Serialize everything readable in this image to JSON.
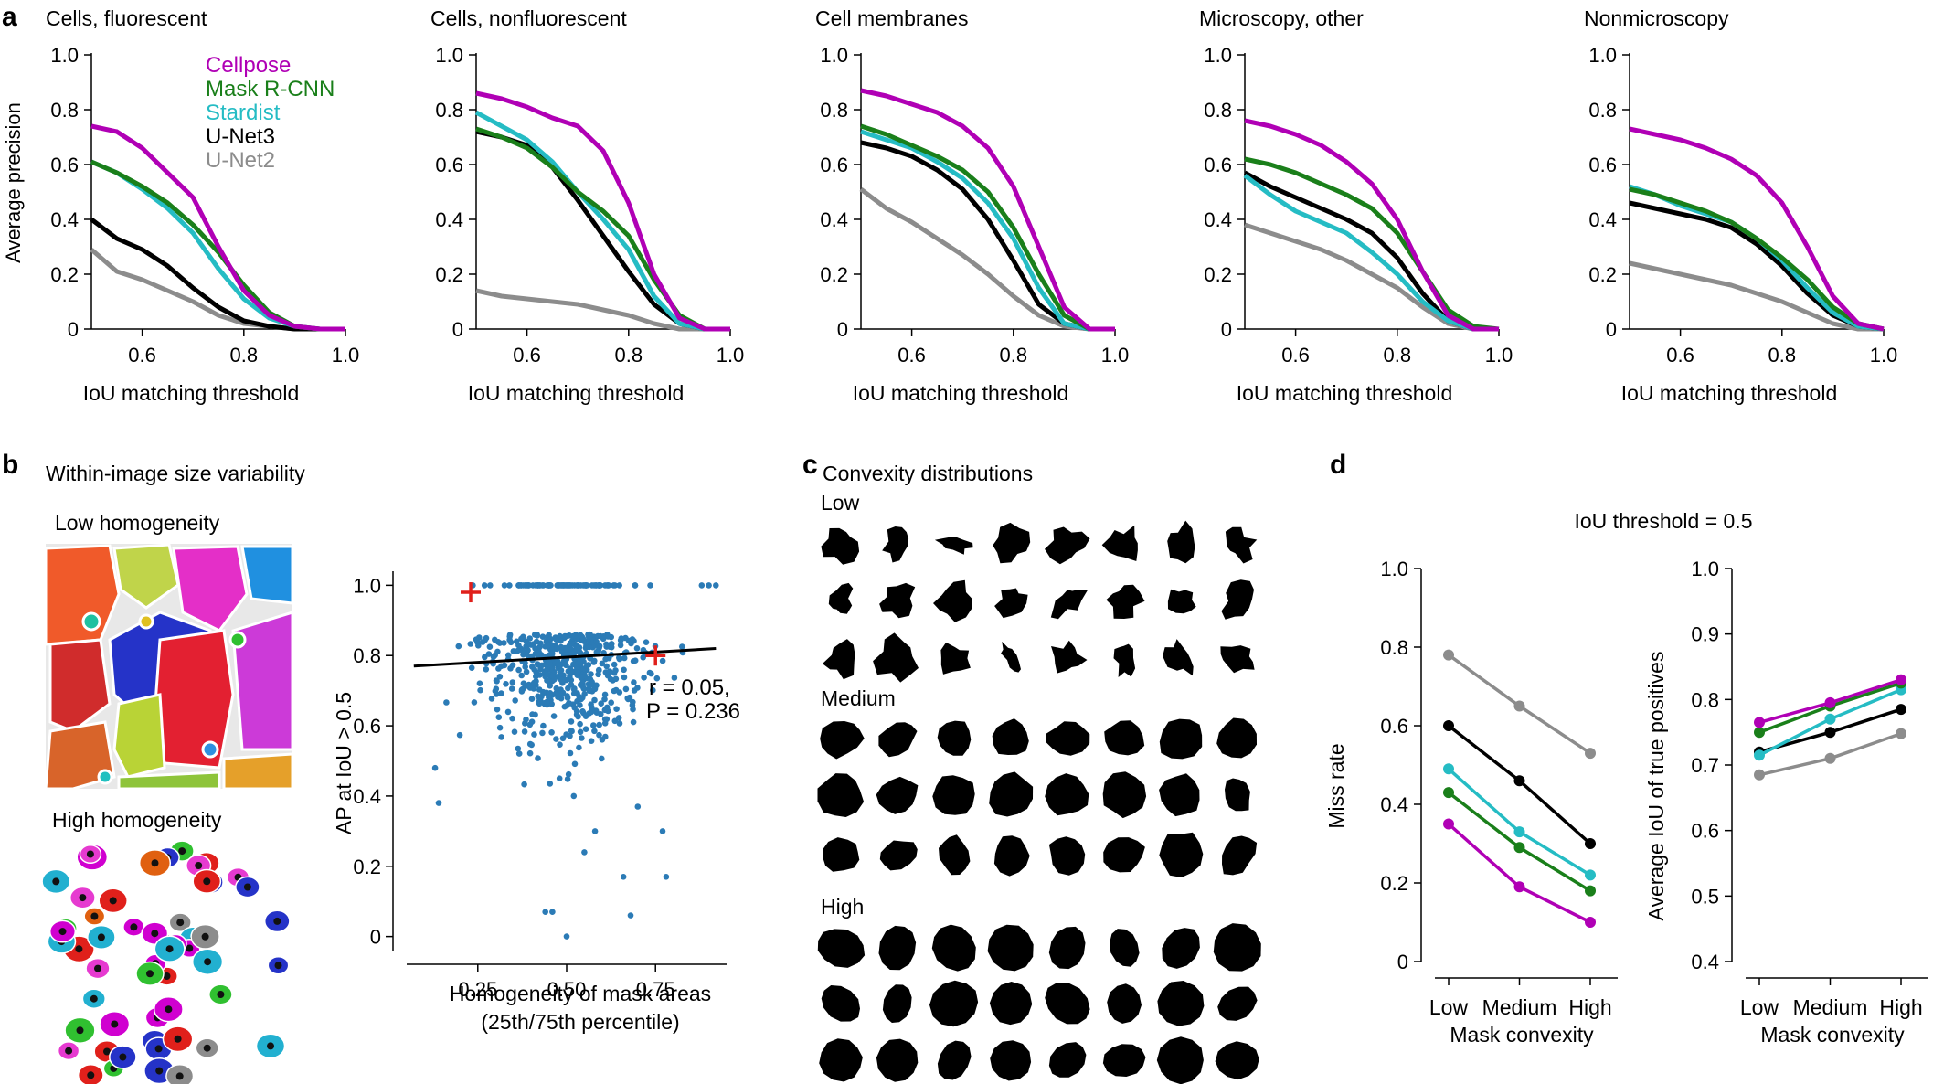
{
  "colors": {
    "cellpose": "#b000b5",
    "maskrcnn": "#1a7f1a",
    "stardist": "#25bcc4",
    "unet3": "#000000",
    "unet2": "#8c8c8c",
    "scatter": "#2b7bb6",
    "highlight": "#e0201b"
  },
  "panels": {
    "a": "a",
    "b": "b",
    "c": "c",
    "d": "d"
  },
  "panel_a": {
    "ylabel": "Average precision",
    "xlabel": "IoU matching threshold",
    "xticks": [
      "0.6",
      "0.8",
      "1.0"
    ],
    "yticks": [
      "0",
      "0.2",
      "0.4",
      "0.6",
      "0.8",
      "1.0"
    ],
    "legend": [
      "Cellpose",
      "Mask R-CNN",
      "Stardist",
      "U-Net3",
      "U-Net2"
    ]
  },
  "panel_b": {
    "title": "Within-image size variability",
    "low_label": "Low homogeneity",
    "high_label": "High homogeneity",
    "stat_r": "r = 0.05,",
    "stat_p": "P = 0.236"
  },
  "panel_c": {
    "title": "Convexity distributions",
    "rows": [
      "Low",
      "Medium",
      "High"
    ]
  },
  "panel_d": {
    "title": "IoU threshold = 0.5"
  },
  "chart_data": [
    {
      "type": "line",
      "title": "Cells, fluorescent",
      "xlabel": "IoU matching threshold",
      "ylabel": "Average precision",
      "xlim": [
        0.5,
        1.0
      ],
      "ylim": [
        0,
        1.0
      ],
      "x": [
        0.5,
        0.55,
        0.6,
        0.65,
        0.7,
        0.75,
        0.8,
        0.85,
        0.9,
        0.95,
        1.0
      ],
      "series": [
        {
          "name": "Cellpose",
          "values": [
            0.74,
            0.72,
            0.66,
            0.57,
            0.48,
            0.3,
            0.14,
            0.05,
            0.01,
            0.0,
            0.0
          ]
        },
        {
          "name": "Mask R-CNN",
          "values": [
            0.61,
            0.57,
            0.52,
            0.46,
            0.38,
            0.28,
            0.16,
            0.06,
            0.01,
            0.0,
            0.0
          ]
        },
        {
          "name": "Stardist",
          "values": [
            0.61,
            0.57,
            0.51,
            0.44,
            0.35,
            0.22,
            0.11,
            0.04,
            0.01,
            0.0,
            0.0
          ]
        },
        {
          "name": "U-Net3",
          "values": [
            0.4,
            0.33,
            0.29,
            0.23,
            0.15,
            0.08,
            0.03,
            0.01,
            0.0,
            0.0,
            0.0
          ]
        },
        {
          "name": "U-Net2",
          "values": [
            0.29,
            0.21,
            0.18,
            0.14,
            0.1,
            0.05,
            0.02,
            0.01,
            0.0,
            0.0,
            0.0
          ]
        }
      ]
    },
    {
      "type": "line",
      "title": "Cells, nonfluorescent",
      "xlabel": "IoU matching threshold",
      "ylabel": "",
      "xlim": [
        0.5,
        1.0
      ],
      "ylim": [
        0,
        1.0
      ],
      "x": [
        0.5,
        0.55,
        0.6,
        0.65,
        0.7,
        0.75,
        0.8,
        0.85,
        0.9,
        0.95,
        1.0
      ],
      "series": [
        {
          "name": "Cellpose",
          "values": [
            0.86,
            0.84,
            0.81,
            0.77,
            0.74,
            0.65,
            0.46,
            0.2,
            0.04,
            0.0,
            0.0
          ]
        },
        {
          "name": "Mask R-CNN",
          "values": [
            0.73,
            0.7,
            0.66,
            0.59,
            0.5,
            0.43,
            0.34,
            0.18,
            0.05,
            0.0,
            0.0
          ]
        },
        {
          "name": "Stardist",
          "values": [
            0.79,
            0.74,
            0.69,
            0.61,
            0.5,
            0.4,
            0.29,
            0.12,
            0.02,
            0.0,
            0.0
          ]
        },
        {
          "name": "U-Net3",
          "values": [
            0.72,
            0.7,
            0.67,
            0.59,
            0.47,
            0.34,
            0.21,
            0.09,
            0.02,
            0.0,
            0.0
          ]
        },
        {
          "name": "U-Net2",
          "values": [
            0.14,
            0.12,
            0.11,
            0.1,
            0.09,
            0.07,
            0.05,
            0.02,
            0.0,
            0.0,
            0.0
          ]
        }
      ]
    },
    {
      "type": "line",
      "title": "Cell membranes",
      "xlabel": "IoU matching threshold",
      "ylabel": "",
      "xlim": [
        0.5,
        1.0
      ],
      "ylim": [
        0,
        1.0
      ],
      "x": [
        0.5,
        0.55,
        0.6,
        0.65,
        0.7,
        0.75,
        0.8,
        0.85,
        0.9,
        0.95,
        1.0
      ],
      "series": [
        {
          "name": "Cellpose",
          "values": [
            0.87,
            0.85,
            0.82,
            0.79,
            0.74,
            0.66,
            0.52,
            0.3,
            0.08,
            0.0,
            0.0
          ]
        },
        {
          "name": "Mask R-CNN",
          "values": [
            0.74,
            0.71,
            0.67,
            0.63,
            0.58,
            0.5,
            0.37,
            0.2,
            0.05,
            0.0,
            0.0
          ]
        },
        {
          "name": "Stardist",
          "values": [
            0.72,
            0.69,
            0.66,
            0.61,
            0.55,
            0.46,
            0.33,
            0.15,
            0.02,
            0.0,
            0.0
          ]
        },
        {
          "name": "U-Net3",
          "values": [
            0.68,
            0.66,
            0.63,
            0.58,
            0.51,
            0.4,
            0.25,
            0.09,
            0.02,
            0.0,
            0.0
          ]
        },
        {
          "name": "U-Net2",
          "values": [
            0.51,
            0.44,
            0.39,
            0.33,
            0.27,
            0.2,
            0.12,
            0.05,
            0.01,
            0.0,
            0.0
          ]
        }
      ]
    },
    {
      "type": "line",
      "title": "Microscopy, other",
      "xlabel": "IoU matching threshold",
      "ylabel": "",
      "xlim": [
        0.5,
        1.0
      ],
      "ylim": [
        0,
        1.0
      ],
      "x": [
        0.5,
        0.55,
        0.6,
        0.65,
        0.7,
        0.75,
        0.8,
        0.85,
        0.9,
        0.95,
        1.0
      ],
      "series": [
        {
          "name": "Cellpose",
          "values": [
            0.76,
            0.74,
            0.71,
            0.67,
            0.61,
            0.53,
            0.4,
            0.21,
            0.05,
            0.0,
            0.0
          ]
        },
        {
          "name": "Mask R-CNN",
          "values": [
            0.62,
            0.6,
            0.57,
            0.53,
            0.49,
            0.44,
            0.35,
            0.21,
            0.07,
            0.01,
            0.0
          ]
        },
        {
          "name": "Stardist",
          "values": [
            0.56,
            0.49,
            0.43,
            0.39,
            0.35,
            0.28,
            0.2,
            0.1,
            0.03,
            0.0,
            0.0
          ]
        },
        {
          "name": "U-Net3",
          "values": [
            0.57,
            0.52,
            0.48,
            0.44,
            0.4,
            0.35,
            0.26,
            0.13,
            0.03,
            0.0,
            0.0
          ]
        },
        {
          "name": "U-Net2",
          "values": [
            0.38,
            0.35,
            0.32,
            0.29,
            0.25,
            0.2,
            0.15,
            0.08,
            0.02,
            0.0,
            0.0
          ]
        }
      ]
    },
    {
      "type": "line",
      "title": "Nonmicroscopy",
      "xlabel": "IoU matching threshold",
      "ylabel": "",
      "xlim": [
        0.5,
        1.0
      ],
      "ylim": [
        0,
        1.0
      ],
      "x": [
        0.5,
        0.55,
        0.6,
        0.65,
        0.7,
        0.75,
        0.8,
        0.85,
        0.9,
        0.95,
        1.0
      ],
      "series": [
        {
          "name": "Cellpose",
          "values": [
            0.73,
            0.71,
            0.69,
            0.66,
            0.62,
            0.56,
            0.46,
            0.3,
            0.12,
            0.02,
            0.0
          ]
        },
        {
          "name": "Mask R-CNN",
          "values": [
            0.51,
            0.49,
            0.46,
            0.43,
            0.39,
            0.33,
            0.26,
            0.18,
            0.08,
            0.02,
            0.0
          ]
        },
        {
          "name": "Stardist",
          "values": [
            0.52,
            0.49,
            0.45,
            0.42,
            0.39,
            0.33,
            0.25,
            0.15,
            0.06,
            0.01,
            0.0
          ]
        },
        {
          "name": "U-Net3",
          "values": [
            0.46,
            0.44,
            0.42,
            0.4,
            0.37,
            0.31,
            0.23,
            0.13,
            0.05,
            0.01,
            0.0
          ]
        },
        {
          "name": "U-Net2",
          "values": [
            0.24,
            0.22,
            0.2,
            0.18,
            0.16,
            0.13,
            0.1,
            0.06,
            0.02,
            0.0,
            0.0
          ]
        }
      ]
    },
    {
      "type": "scatter",
      "title": "",
      "xlabel": "Homogeneity of mask areas",
      "xlabel2": "(25th/75th percentile)",
      "ylabel": "AP at IoU > 0.5",
      "xlim": [
        0.05,
        0.95
      ],
      "ylim": [
        -0.04,
        1.04
      ],
      "xticks": [
        "0.25",
        "0.50",
        "0.75"
      ],
      "yticks": [
        "0",
        "0.2",
        "0.4",
        "0.6",
        "0.8",
        "1.0"
      ],
      "n_points_approx": 700,
      "fit_line": {
        "x": [
          0.07,
          0.92
        ],
        "y": [
          0.77,
          0.82
        ]
      },
      "highlighted": [
        {
          "x": 0.23,
          "y": 0.98
        },
        {
          "x": 0.75,
          "y": 0.8
        }
      ],
      "sample_points": [
        {
          "x": 0.44,
          "y": 0.07
        },
        {
          "x": 0.46,
          "y": 0.07
        },
        {
          "x": 0.5,
          "y": 0.0
        },
        {
          "x": 0.68,
          "y": 0.06
        },
        {
          "x": 0.66,
          "y": 0.17
        },
        {
          "x": 0.78,
          "y": 0.17
        },
        {
          "x": 0.77,
          "y": 0.3
        },
        {
          "x": 0.55,
          "y": 0.24
        },
        {
          "x": 0.58,
          "y": 0.3
        },
        {
          "x": 0.7,
          "y": 0.37
        },
        {
          "x": 0.88,
          "y": 1.0
        },
        {
          "x": 0.9,
          "y": 1.0
        },
        {
          "x": 0.92,
          "y": 1.0
        },
        {
          "x": 0.48,
          "y": 0.45
        },
        {
          "x": 0.52,
          "y": 0.4
        },
        {
          "x": 0.14,
          "y": 0.38
        },
        {
          "x": 0.13,
          "y": 0.48
        }
      ]
    },
    {
      "type": "line",
      "title": "IoU threshold = 0.5",
      "xlabel": "Mask convexity",
      "ylabel": "Miss rate",
      "categories": [
        "Low",
        "Medium",
        "High"
      ],
      "ylim": [
        0,
        1.0
      ],
      "yticks": [
        "0",
        "0.2",
        "0.4",
        "0.6",
        "0.8",
        "1.0"
      ],
      "series": [
        {
          "name": "Cellpose",
          "values": [
            0.35,
            0.19,
            0.1
          ]
        },
        {
          "name": "Mask R-CNN",
          "values": [
            0.43,
            0.29,
            0.18
          ]
        },
        {
          "name": "Stardist",
          "values": [
            0.49,
            0.33,
            0.22
          ]
        },
        {
          "name": "U-Net3",
          "values": [
            0.6,
            0.46,
            0.3
          ]
        },
        {
          "name": "U-Net2",
          "values": [
            0.78,
            0.65,
            0.53
          ]
        }
      ]
    },
    {
      "type": "line",
      "title": "",
      "xlabel": "Mask convexity",
      "ylabel": "Average IoU of true positives",
      "categories": [
        "Low",
        "Medium",
        "High"
      ],
      "ylim": [
        0.4,
        1.0
      ],
      "yticks": [
        "0.4",
        "0.5",
        "0.6",
        "0.7",
        "0.8",
        "0.9",
        "1.0"
      ],
      "series": [
        {
          "name": "Cellpose",
          "values": [
            0.765,
            0.795,
            0.83
          ]
        },
        {
          "name": "Mask R-CNN",
          "values": [
            0.75,
            0.79,
            0.825
          ]
        },
        {
          "name": "Stardist",
          "values": [
            0.715,
            0.77,
            0.815
          ]
        },
        {
          "name": "U-Net3",
          "values": [
            0.72,
            0.75,
            0.785
          ]
        },
        {
          "name": "U-Net2",
          "values": [
            0.685,
            0.71,
            0.748
          ]
        }
      ]
    }
  ]
}
